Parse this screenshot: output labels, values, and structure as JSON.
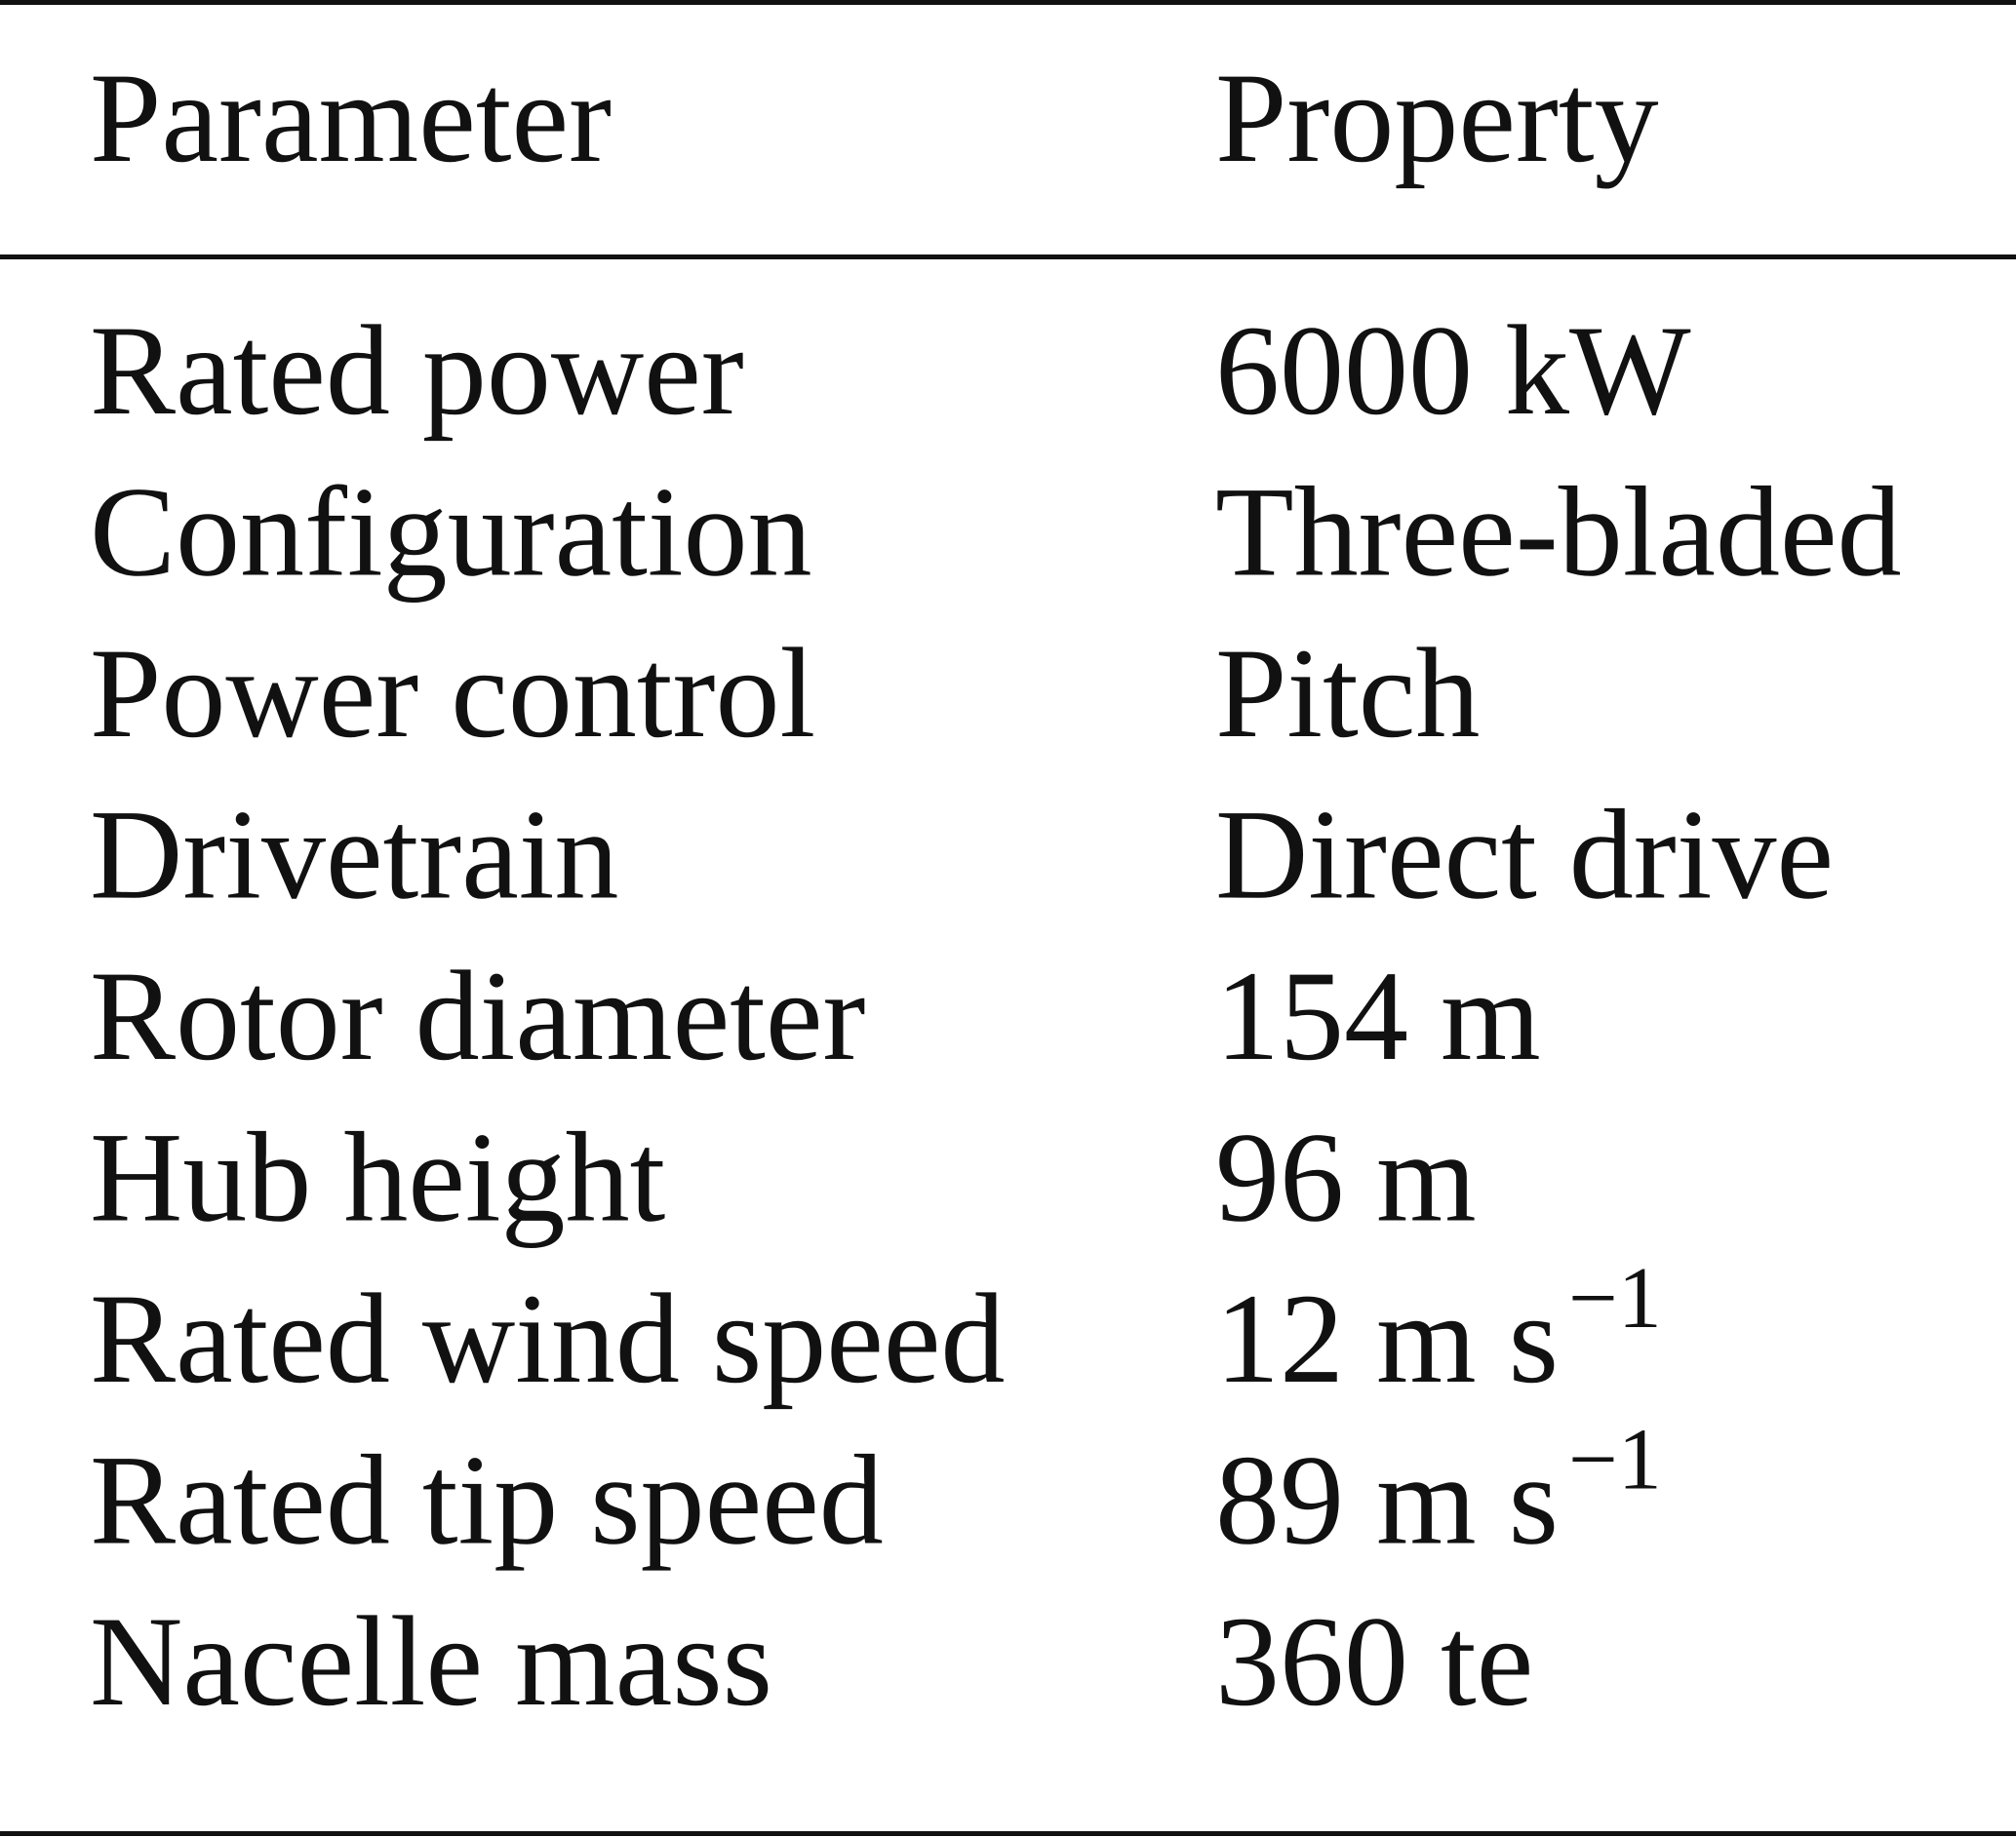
{
  "table": {
    "header": [
      "Parameter",
      "Property"
    ],
    "rows": [
      [
        "Rated power",
        "6000 kW"
      ],
      [
        "Configuration",
        "Three-bladed"
      ],
      [
        "Power control",
        "Pitch"
      ],
      [
        "Drivetrain",
        "Direct drive"
      ],
      [
        "Rotor diameter",
        "154 m"
      ],
      [
        "Hub height",
        "96 m"
      ],
      [
        "Rated wind speed",
        {
          "base": "12 m s",
          "sup": "−1"
        }
      ],
      [
        "Rated tip speed",
        {
          "base": "89 m s",
          "sup": "−1"
        }
      ],
      [
        "Nacelle mass",
        "360 te"
      ]
    ]
  }
}
